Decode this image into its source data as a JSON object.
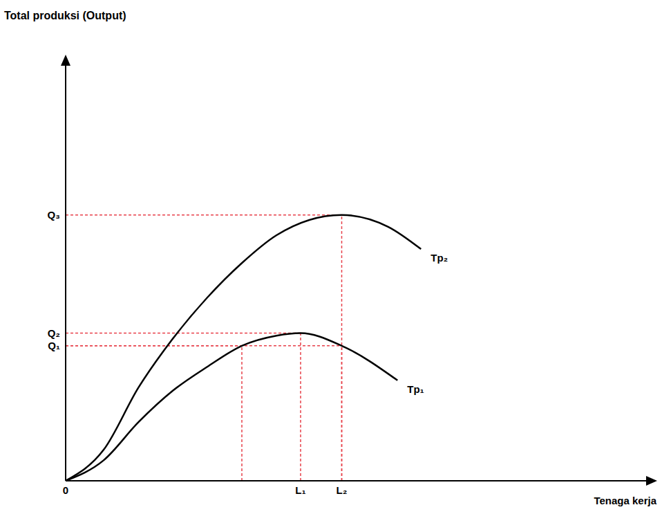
{
  "chart_data": {
    "type": "line",
    "xlabel": "Tenaga kerja",
    "ylabel": "Total produksi (Output)",
    "xlim": [
      0,
      100
    ],
    "ylim": [
      0,
      100
    ],
    "xticks": [
      0,
      {
        "value": 40,
        "label": "L₁"
      },
      {
        "value": 47,
        "label": "L₂"
      }
    ],
    "yticks": [
      {
        "value": 32,
        "label": "Q₁"
      },
      {
        "value": 35,
        "label": "Q₂"
      },
      {
        "value": 63,
        "label": "Q₃"
      }
    ],
    "tick_labels": true,
    "grid": false,
    "series": [
      {
        "name": "Tp₂",
        "color": "#000000",
        "x": [
          0,
          6.5,
          12.4,
          18.2,
          24.1,
          30,
          35.9,
          47,
          54.9,
          60.5
        ],
        "values": [
          0,
          7.4,
          22.1,
          33.6,
          43.4,
          51.6,
          58.2,
          63,
          60.2,
          54.9
        ]
      },
      {
        "name": "Tp₁",
        "color": "#000000",
        "x": [
          0,
          6.5,
          12.4,
          18.2,
          24.1,
          30,
          35.9,
          40,
          47,
          56.5
        ],
        "values": [
          0,
          4.9,
          13.9,
          21.3,
          27,
          32,
          34.4,
          35,
          32,
          23.8
        ]
      }
    ]
  }
}
